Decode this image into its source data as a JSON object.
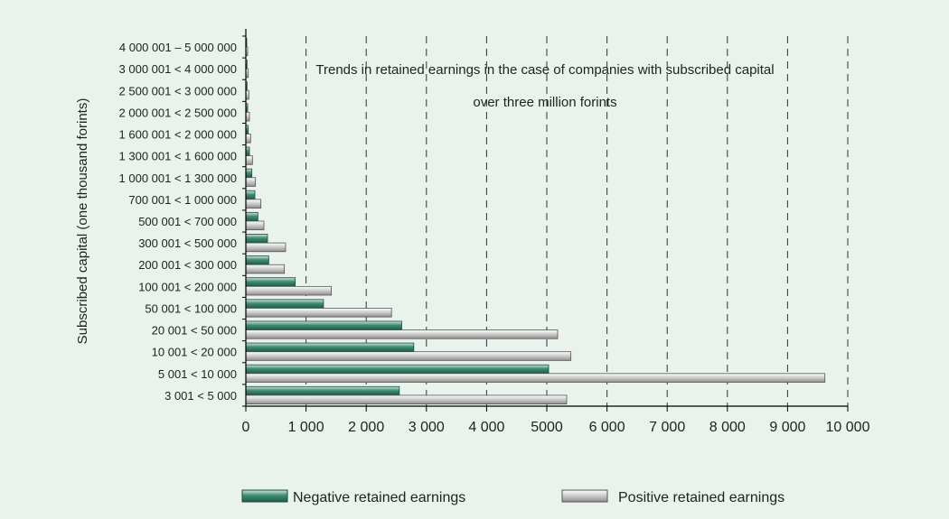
{
  "chart_data": {
    "type": "bar",
    "orientation": "horizontal",
    "title_lines": [
      "Trends in retained earnings in the case of companies with subscribed capital",
      "over three million forints"
    ],
    "ylabel": "Subscribed capital (one thousand forints)",
    "xlabel": "",
    "xlim": [
      0,
      10000
    ],
    "xticks": [
      0,
      1000,
      2000,
      3000,
      4000,
      5000,
      6000,
      7000,
      8000,
      9000,
      10000
    ],
    "xtick_labels": [
      "0",
      "1 000",
      "2 000",
      "3 000",
      "4 000",
      "5000",
      "6 000",
      "7 000",
      "8 000",
      "9 000",
      "10 000"
    ],
    "grid": "vertical-dashed",
    "legend_position": "bottom",
    "categories": [
      "3 001 < 5 000",
      "5 001 < 10 000",
      "10 001 < 20 000",
      "20 001 < 50 000",
      "50 001 < 100 000",
      "100 001 < 200 000",
      "200 001 < 300 000",
      "300 001 < 500 000",
      "500 001 < 700 000",
      "700 001 < 1 000 000",
      "1 000 001 < 1 300 000",
      "1 300 001 < 1 600 000",
      "1 600 001 < 2 000 000",
      "2 000 001 < 2 500 000",
      "2 500 001 < 3 000 000",
      "3 000 001 < 4 000 000",
      "4 000 001 – 5 000 000"
    ],
    "series": [
      {
        "name": "Negative retained earnings",
        "color": "#2e7a62",
        "values": [
          2550,
          5030,
          2790,
          2590,
          1290,
          820,
          380,
          360,
          200,
          150,
          100,
          60,
          40,
          30,
          20,
          20,
          15
        ]
      },
      {
        "name": "Positive retained earnings",
        "color": "#c8c8c8",
        "values": [
          5330,
          9620,
          5400,
          5180,
          2420,
          1420,
          640,
          660,
          300,
          250,
          160,
          110,
          80,
          60,
          50,
          40,
          30
        ]
      }
    ]
  }
}
